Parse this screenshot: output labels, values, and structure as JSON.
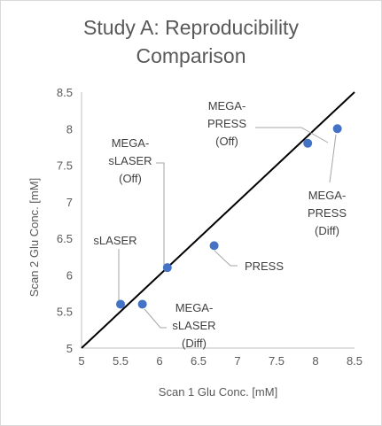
{
  "chart_data": {
    "type": "scatter",
    "title_lines": [
      "Study A: Reproducibility",
      "Comparison"
    ],
    "xlabel": "Scan 1 Glu Conc. [mM]",
    "ylabel": "Scan 2 Glu Conc. [mM]",
    "xlim": [
      5,
      8.5
    ],
    "ylim": [
      5,
      8.5
    ],
    "xticks": [
      "5",
      "5.5",
      "6",
      "6.5",
      "7",
      "7.5",
      "8",
      "8.5"
    ],
    "yticks": [
      "5",
      "5.5",
      "6",
      "6.5",
      "7",
      "7.5",
      "8",
      "8.5"
    ],
    "grid": false,
    "identity_line": true,
    "point_color": "#4472c4",
    "line_color": "#000000",
    "points": [
      {
        "x": 5.5,
        "y": 5.6,
        "label": [
          "sLASER"
        ]
      },
      {
        "x": 5.78,
        "y": 5.6,
        "label": [
          "MEGA-",
          "sLASER",
          "(Diff)"
        ]
      },
      {
        "x": 6.1,
        "y": 6.1,
        "label": [
          "MEGA-",
          "sLASER",
          "(Off)"
        ]
      },
      {
        "x": 6.7,
        "y": 6.4,
        "label": [
          "PRESS"
        ]
      },
      {
        "x": 7.9,
        "y": 7.8,
        "label": [
          "MEGA-",
          "PRESS",
          "(Off)"
        ]
      },
      {
        "x": 8.28,
        "y": 8.0,
        "label": [
          "MEGA-",
          "PRESS",
          "(Diff)"
        ]
      }
    ]
  }
}
